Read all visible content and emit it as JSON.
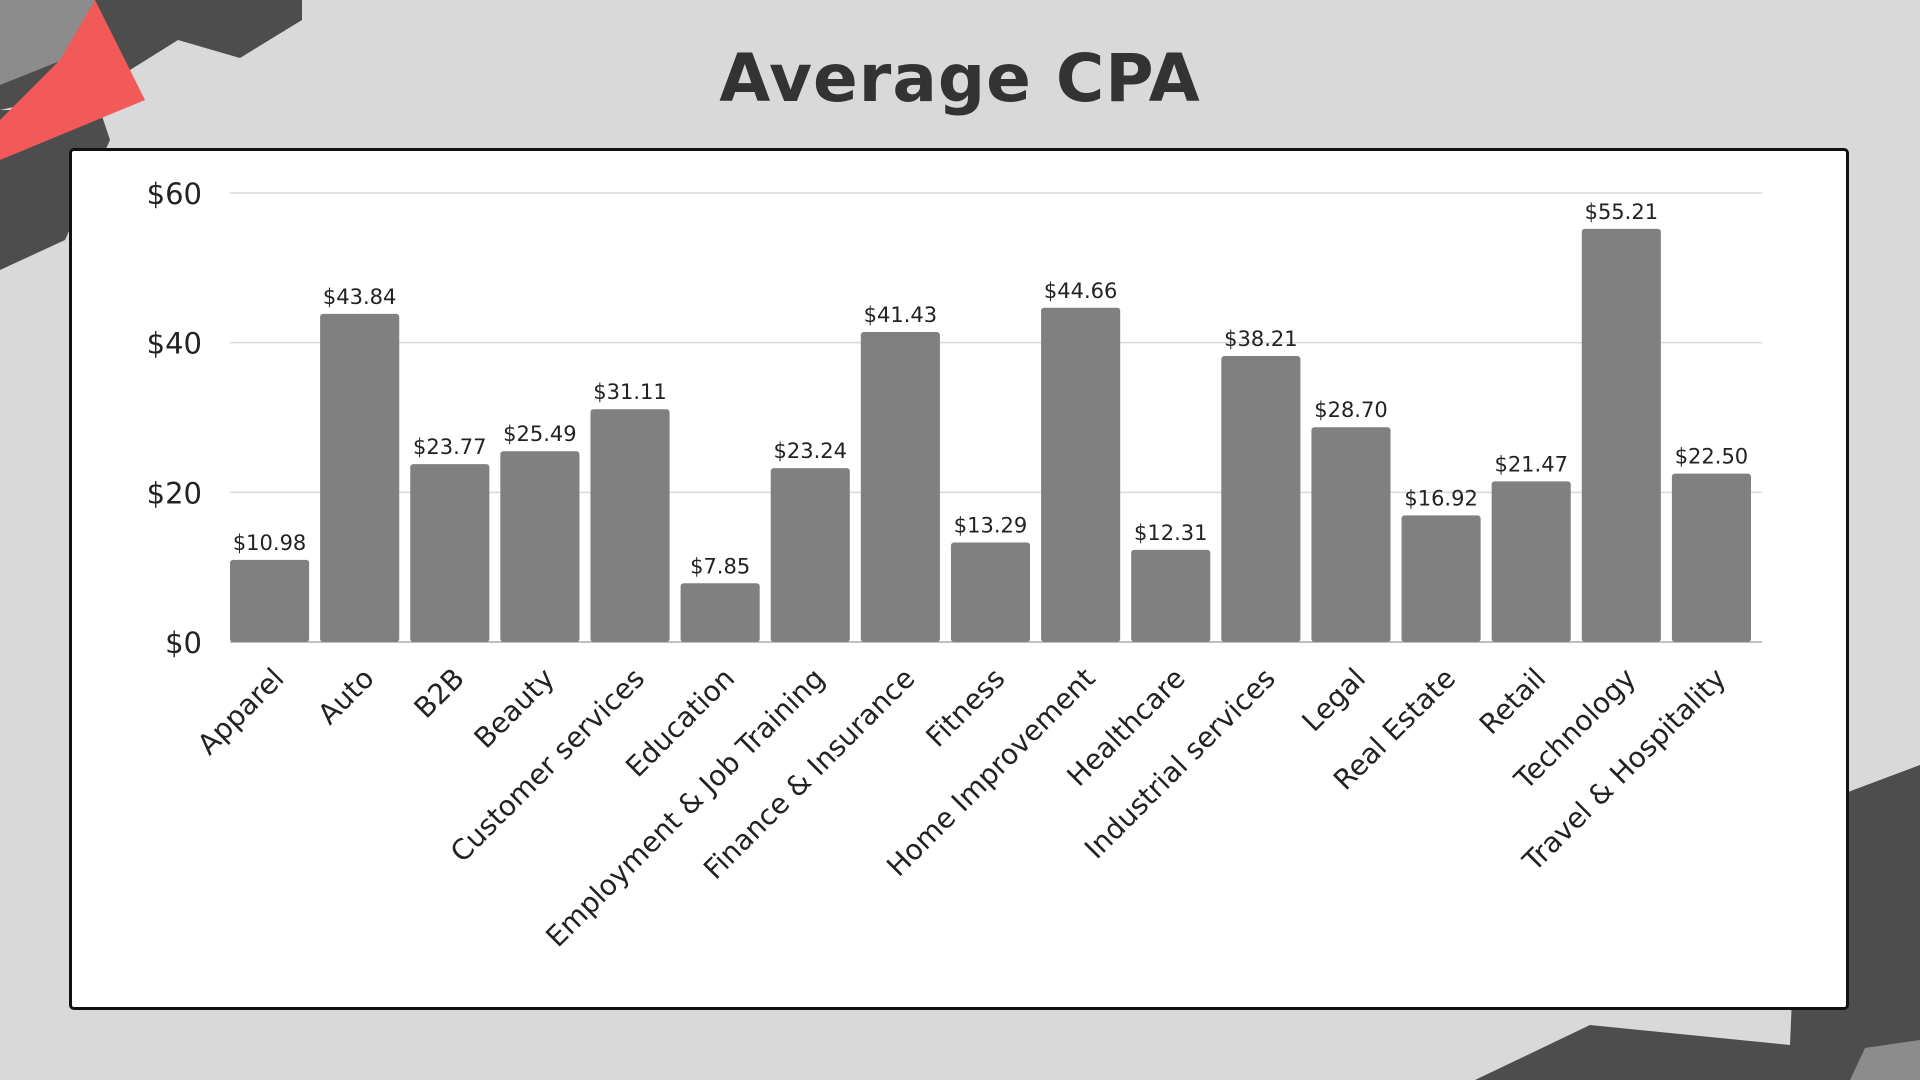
{
  "chart_data": {
    "type": "bar",
    "title": "Average CPA",
    "categories": [
      "Apparel",
      "Auto",
      "B2B",
      "Beauty",
      "Customer services",
      "Education",
      "Employment & Job Training",
      "Finance & Insurance",
      "Fitness",
      "Home Improvement",
      "Healthcare",
      "Industrial services",
      "Legal",
      "Real Estate",
      "Retail",
      "Technology",
      "Travel & Hospitality"
    ],
    "values": [
      10.98,
      43.84,
      23.77,
      25.49,
      31.11,
      7.85,
      23.24,
      41.43,
      13.29,
      44.66,
      12.31,
      38.21,
      28.7,
      16.92,
      21.47,
      55.21,
      22.5
    ],
    "data_labels": [
      "$10.98",
      "$43.84",
      "$23.77",
      "$25.49",
      "$31.11",
      "$7.85",
      "$23.24",
      "$41.43",
      "$13.29",
      "$44.66",
      "$12.31",
      "$38.21",
      "$28.70",
      "$16.92",
      "$21.47",
      "$55.21",
      "$22.50"
    ],
    "y_ticks": [
      0,
      20,
      40,
      60
    ],
    "y_tick_labels": [
      "$0",
      "$20",
      "$40",
      "$60"
    ],
    "ylim": [
      0,
      60
    ],
    "xlabel": "",
    "ylabel": "",
    "grid": true,
    "legend": false,
    "colors": {
      "bar": "#808080",
      "grid": "#d9d9d9",
      "axis": "#bfbfbf",
      "text": "#222222",
      "background": "#d9d9d9",
      "card": "#ffffff",
      "accent": "#f25a5a",
      "shape_dark": "#4d4d4d",
      "shape_mid": "#8c8c8c"
    }
  }
}
